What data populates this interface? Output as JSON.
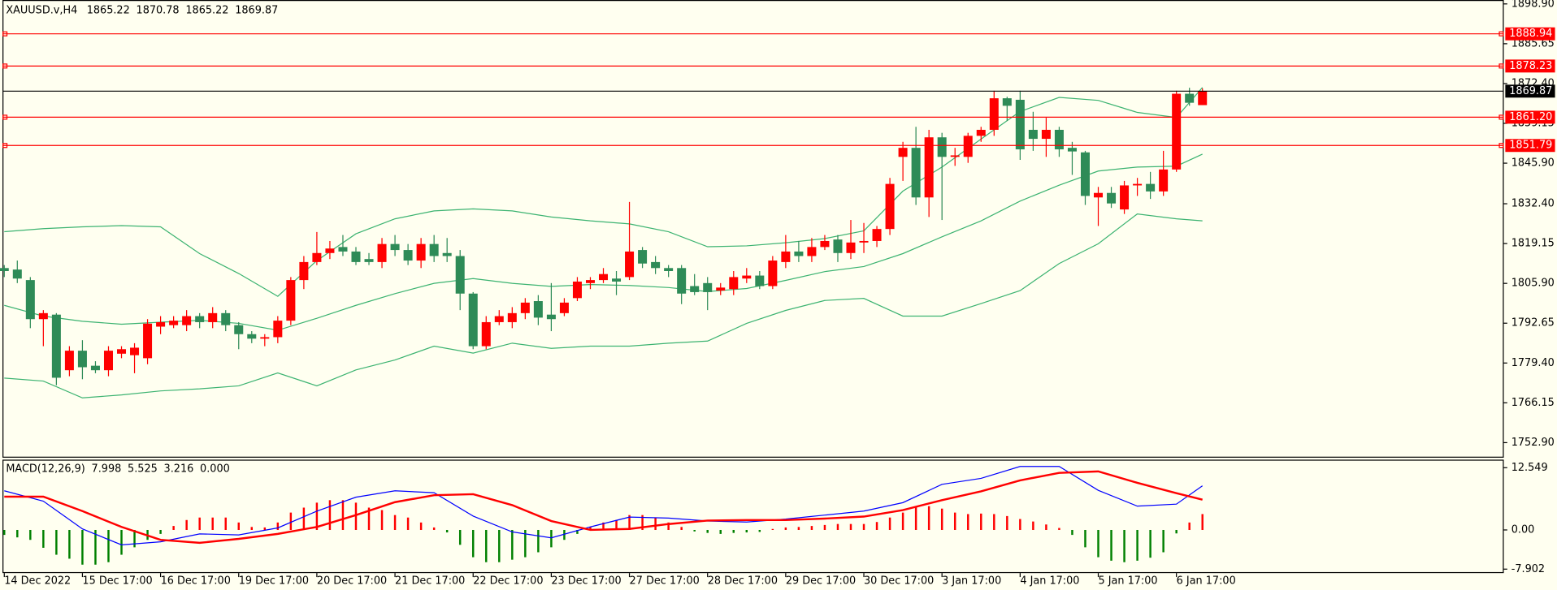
{
  "chart_data": {
    "type": "candlestick",
    "symbol": "XAUUSD.v,H4",
    "open": [
      1811,
      1810.5,
      1807,
      1794,
      1795.5,
      1777,
      1783.5,
      1778.5,
      1777,
      1782.5,
      1782,
      1781,
      1791.5,
      1792,
      1792,
      1795,
      1793,
      1796,
      1792,
      1789,
      1787.5,
      1788,
      1793.5,
      1807,
      1813,
      1816,
      1818,
      1816.5,
      1814,
      1813,
      1819,
      1817,
      1813.5,
      1819,
      1816,
      1815,
      1802.5,
      1785,
      1793,
      1793,
      1796,
      1800,
      1795.5,
      1796,
      1801,
      1806,
      1807,
      1807.5,
      1808,
      1817,
      1813,
      1811,
      1811,
      1805,
      1806,
      1803.5,
      1804,
      1807.5,
      1808.5,
      1805,
      1813,
      1816.5,
      1815,
      1818,
      1820.5,
      1816,
      1819.5,
      1820,
      1824,
      1848,
      1851,
      1834.5,
      1854.5,
      1848,
      1848,
      1855,
      1857,
      1867.5,
      1867,
      1857,
      1854,
      1857,
      1851,
      1849.5,
      1834.5,
      1836,
      1830.5,
      1838.5,
      1839,
      1836.5,
      1843.8,
      1869,
      1865.22
    ],
    "high": [
      1812,
      1813.5,
      1808,
      1797,
      1796,
      1785,
      1787,
      1780,
      1785,
      1785,
      1786,
      1794,
      1795,
      1795,
      1797,
      1796,
      1798,
      1797,
      1793,
      1790,
      1789,
      1795,
      1808,
      1815,
      1823,
      1820,
      1822,
      1818,
      1816,
      1821,
      1822,
      1819,
      1821,
      1822,
      1821,
      1817,
      1803,
      1795,
      1797,
      1798,
      1801,
      1802,
      1806,
      1801,
      1808,
      1808,
      1811,
      1810,
      1833,
      1818,
      1815,
      1812,
      1812,
      1809,
      1808,
      1806,
      1810,
      1811,
      1810,
      1815,
      1822,
      1820,
      1821,
      1822,
      1822,
      1827,
      1826,
      1825,
      1841,
      1853,
      1858,
      1857,
      1856,
      1851,
      1856,
      1858,
      1870,
      1868,
      1870,
      1863,
      1861,
      1858,
      1853,
      1850,
      1838,
      1838,
      1840,
      1841,
      1843,
      1850,
      1870,
      1871,
      1870.78
    ],
    "low": [
      1808,
      1806,
      1791,
      1785,
      1772,
      1775,
      1774,
      1776,
      1775,
      1781,
      1776,
      1779,
      1789,
      1791,
      1790,
      1791,
      1791,
      1790,
      1784,
      1786,
      1785,
      1786,
      1792,
      1804,
      1812,
      1814,
      1815,
      1812,
      1812,
      1811,
      1815,
      1812,
      1811,
      1813,
      1813,
      1797,
      1784,
      1784,
      1792,
      1791,
      1794,
      1792,
      1790,
      1795,
      1800,
      1804,
      1806,
      1802,
      1807,
      1811,
      1809,
      1808,
      1799,
      1802,
      1797,
      1802,
      1802,
      1806,
      1804,
      1804,
      1811,
      1813,
      1813,
      1817,
      1813,
      1814,
      1816,
      1818,
      1822,
      1840,
      1832,
      1828,
      1827,
      1845,
      1846,
      1853,
      1855,
      1860,
      1847,
      1850,
      1848,
      1848,
      1842,
      1832,
      1825,
      1831,
      1829,
      1835,
      1834,
      1835,
      1843,
      1865,
      1865.22
    ],
    "close": [
      1810,
      1807.5,
      1794,
      1796,
      1774.5,
      1783.5,
      1778,
      1777,
      1783.5,
      1784,
      1784.5,
      1792.5,
      1793,
      1793.5,
      1795,
      1793,
      1796,
      1792,
      1789,
      1787.5,
      1788,
      1793.5,
      1807,
      1813,
      1816,
      1817.5,
      1816.5,
      1813,
      1813,
      1819,
      1817,
      1813.5,
      1819,
      1815,
      1815,
      1802.5,
      1785,
      1793,
      1795,
      1796,
      1799.5,
      1794.5,
      1794,
      1799.5,
      1806.5,
      1807,
      1809,
      1806.5,
      1816.5,
      1812.5,
      1811,
      1810,
      1802.5,
      1803,
      1803,
      1804.5,
      1808,
      1808.5,
      1805,
      1813.5,
      1816.5,
      1815,
      1818,
      1820,
      1816,
      1819.5,
      1820,
      1824,
      1839,
      1851,
      1834.5,
      1854.5,
      1848,
      1848.5,
      1855,
      1857,
      1867.5,
      1865,
      1850.5,
      1854,
      1857,
      1850.5,
      1849.8,
      1835,
      1836,
      1832.5,
      1838.5,
      1839,
      1836.5,
      1843.8,
      1869,
      1866,
      1869.87
    ],
    "up_color": "#ff0000",
    "down_color": "#2e8b57",
    "xlim": [
      -0.1,
      115.1
    ],
    "ylim": [
      1747.9,
      1900.2
    ],
    "yticks": [
      {
        "value": 1898.9,
        "label": "1898.90"
      },
      {
        "value": 1885.65,
        "label": "1885.65"
      },
      {
        "value": 1872.4,
        "label": "1872.40"
      },
      {
        "value": 1859.15,
        "label": "1859.15"
      },
      {
        "value": 1845.9,
        "label": "1845.90"
      },
      {
        "value": 1832.4,
        "label": "1832.40"
      },
      {
        "value": 1819.15,
        "label": "1819.15"
      },
      {
        "value": 1805.9,
        "label": "1805.90"
      },
      {
        "value": 1792.65,
        "label": "1792.65"
      },
      {
        "value": 1779.4,
        "label": "1779.40"
      },
      {
        "value": 1766.15,
        "label": "1766.15"
      },
      {
        "value": 1752.9,
        "label": "1752.90"
      }
    ],
    "xticks": [
      {
        "value": 0,
        "label": "14 Dec 2022"
      },
      {
        "value": 6,
        "label": "15 Dec 17:00"
      },
      {
        "value": 12,
        "label": "16 Dec 17:00"
      },
      {
        "value": 18,
        "label": "19 Dec 17:00"
      },
      {
        "value": 24,
        "label": "20 Dec 17:00"
      },
      {
        "value": 30,
        "label": "21 Dec 17:00"
      },
      {
        "value": 36,
        "label": "22 Dec 17:00"
      },
      {
        "value": 42,
        "label": "23 Dec 17:00"
      },
      {
        "value": 48,
        "label": "27 Dec 17:00"
      },
      {
        "value": 54,
        "label": "28 Dec 17:00"
      },
      {
        "value": 60,
        "label": "29 Dec 17:00"
      },
      {
        "value": 66,
        "label": "30 Dec 17:00"
      },
      {
        "value": 72,
        "label": "3 Jan 17:00"
      },
      {
        "value": 78,
        "label": "4 Jan 17:00"
      },
      {
        "value": 84,
        "label": "5 Jan 17:00"
      },
      {
        "value": 90,
        "label": "6 Jan 17:00"
      }
    ],
    "levels": [
      {
        "value": 1888.94,
        "color": "#ff0000"
      },
      {
        "value": 1878.23,
        "color": "#ff0000"
      },
      {
        "value": {
          "value": 1861.2,
          "label": "1861.20"
        },
        "color": "#ff0000"
      },
      {
        "value": 1851.79,
        "color": "#ff0000"
      }
    ],
    "price_line_color": "#000000",
    "bands": {
      "color": "#3cb371",
      "x": [
        0,
        3,
        6,
        9,
        12,
        15,
        18,
        21,
        24,
        27,
        30,
        33,
        36,
        39,
        42,
        45,
        48,
        51,
        54,
        57,
        60,
        63,
        66,
        69,
        72,
        75,
        78,
        81,
        84,
        87,
        90,
        92
      ],
      "upper": [
        1823.1,
        1824.1,
        1824.7,
        1825.1,
        1824.7,
        1815.8,
        1809.2,
        1801.6,
        1813.5,
        1822.4,
        1827.4,
        1830.0,
        1830.7,
        1830.0,
        1828.0,
        1826.7,
        1825.7,
        1823.1,
        1818.1,
        1818.4,
        1819.4,
        1820.8,
        1823.4,
        1836.6,
        1844.6,
        1853.9,
        1863.1,
        1867.8,
        1866.8,
        1862.8,
        1861.1,
        1871.1
      ],
      "middle": [
        1798.6,
        1795.0,
        1793.3,
        1792.3,
        1793.0,
        1793.6,
        1792.6,
        1790.3,
        1794.3,
        1798.6,
        1802.5,
        1805.9,
        1807.5,
        1805.9,
        1804.9,
        1805.5,
        1805.2,
        1804.5,
        1803.2,
        1804.2,
        1806.9,
        1809.8,
        1811.5,
        1815.8,
        1821.4,
        1826.7,
        1833.3,
        1838.6,
        1843.3,
        1844.6,
        1844.9,
        1848.9
      ],
      "lower": [
        1774.4,
        1773.4,
        1767.8,
        1768.8,
        1770.1,
        1770.8,
        1771.8,
        1776.1,
        1771.8,
        1777.1,
        1780.4,
        1785.0,
        1782.7,
        1786.0,
        1784.3,
        1785.0,
        1785.0,
        1786.0,
        1786.7,
        1792.6,
        1796.9,
        1800.2,
        1800.9,
        1795.0,
        1795.0,
        1799.2,
        1803.5,
        1812.5,
        1819.1,
        1829.0,
        1827.4,
        1826.7
      ]
    },
    "macd": {
      "title": "MACD(12,26,9)",
      "readout": [
        7.998,
        5.525,
        3.216,
        {
          "value": 0,
          "label": "0.000"
        }
      ],
      "ylim": [
        -8.7,
        14.17
      ],
      "yticks": [
        12.549,
        {
          "value": 0,
          "label": "0.00"
        },
        -7.902
      ],
      "up_color": "#ff0000",
      "down_color": "#008000",
      "histogram": [
        -1.0,
        -1.5,
        -2.0,
        -3.6,
        -5.0,
        -5.8,
        -7.0,
        -7.0,
        -6.5,
        -5.0,
        -3.5,
        -2.0,
        -0.8,
        0.8,
        2.0,
        2.5,
        2.5,
        2.5,
        1.5,
        0.6,
        0.5,
        1.5,
        3.5,
        4.5,
        5.5,
        6.0,
        6.0,
        5.5,
        4.5,
        4.0,
        3.0,
        2.5,
        1.5,
        0.5,
        -0.5,
        -3.0,
        -5.5,
        -6.5,
        -6.5,
        -6.0,
        -5.5,
        -4.5,
        -3.5,
        -2.0,
        -0.8,
        0.6,
        1.5,
        2.0,
        3.0,
        3.0,
        2.5,
        1.5,
        0.6,
        -0.3,
        -0.6,
        -0.8,
        -0.6,
        -0.5,
        -0.4,
        0.2,
        0.5,
        0.6,
        0.8,
        1.0,
        1.2,
        1.2,
        1.2,
        1.6,
        2.5,
        3.5,
        4.5,
        4.8,
        4.3,
        3.5,
        3.2,
        3.3,
        3.2,
        2.8,
        2.2,
        1.7,
        1.1,
        0.4,
        -1.0,
        -3.5,
        -5.5,
        -6.2,
        -6.5,
        -6.2,
        -5.6,
        -4.5,
        -0.7,
        1.5,
        3.2
      ],
      "x": [
        0,
        3,
        6,
        9,
        12,
        15,
        18,
        21,
        24,
        27,
        30,
        33,
        36,
        39,
        42,
        45,
        48,
        51,
        54,
        57,
        60,
        63,
        66,
        69,
        72,
        75,
        78,
        81,
        84,
        87,
        90,
        92
      ],
      "main": {
        "color": "#0000ff",
        "values": [
          7.9,
          5.8,
          0.2,
          -3.0,
          -2.4,
          -0.8,
          -1.0,
          0.4,
          3.8,
          6.6,
          7.9,
          7.5,
          2.8,
          -0.4,
          -1.6,
          0.6,
          2.6,
          2.4,
          1.8,
          1.6,
          2.2,
          3.0,
          3.8,
          5.5,
          9.2,
          10.4,
          12.8,
          12.8,
          8.0,
          4.8,
          5.2,
          8.9
        ]
      },
      "signal": {
        "color": "#ff0000",
        "values": [
          6.7,
          6.7,
          3.8,
          0.6,
          -2.0,
          -2.6,
          -1.8,
          -0.8,
          0.6,
          3.0,
          5.6,
          7.0,
          7.2,
          5.0,
          1.8,
          0.0,
          0.2,
          1.2,
          1.9,
          2.0,
          2.0,
          2.3,
          2.7,
          4.0,
          6.0,
          7.8,
          10.0,
          11.5,
          11.8,
          9.5,
          7.4,
          6.1
        ]
      }
    }
  }
}
